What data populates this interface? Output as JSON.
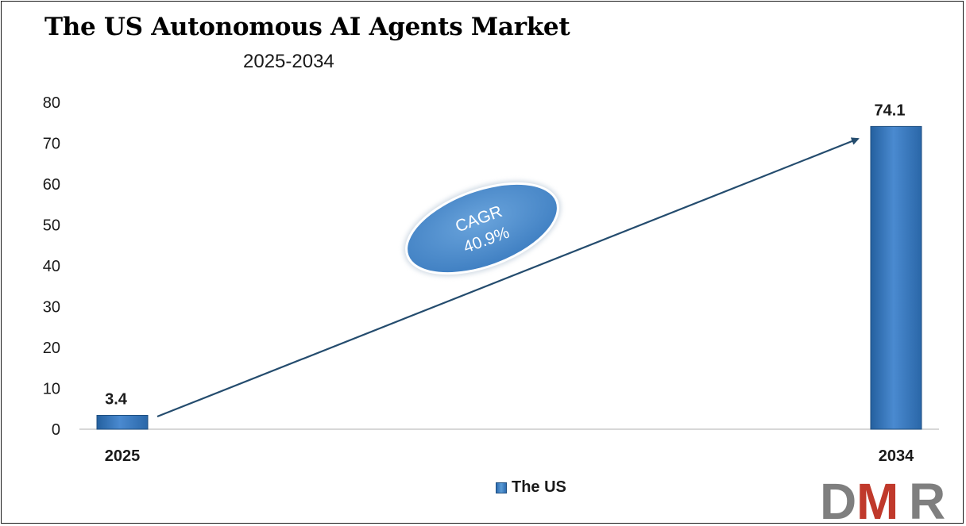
{
  "header": {
    "title": "The US Autonomous AI Agents Market",
    "subtitle": "2025-2034"
  },
  "chart_data": {
    "type": "bar",
    "categories": [
      "2025",
      "2034"
    ],
    "series": [
      {
        "name": "The US",
        "values": [
          3.4,
          74.1
        ]
      }
    ],
    "data_labels": [
      "3.4",
      "74.1"
    ],
    "ylim": [
      0,
      80
    ],
    "yticks": [
      0,
      10,
      20,
      30,
      40,
      50,
      60,
      70,
      80
    ],
    "grid": false,
    "legend": "bottom-center",
    "annotation": {
      "line1": "CAGR",
      "line2": "40.9%"
    },
    "colors": {
      "bar": "#3a7cc3",
      "bar_light": "#6aa4dc",
      "bar_dark": "#24609f",
      "arrow": "#244c6e"
    }
  },
  "legend": {
    "label": "The US"
  },
  "logo": {
    "letters": [
      "D",
      "M",
      "R"
    ],
    "colors": {
      "D": "#7f7f7f",
      "M": "#c0392b",
      "R": "#7f7f7f"
    }
  }
}
